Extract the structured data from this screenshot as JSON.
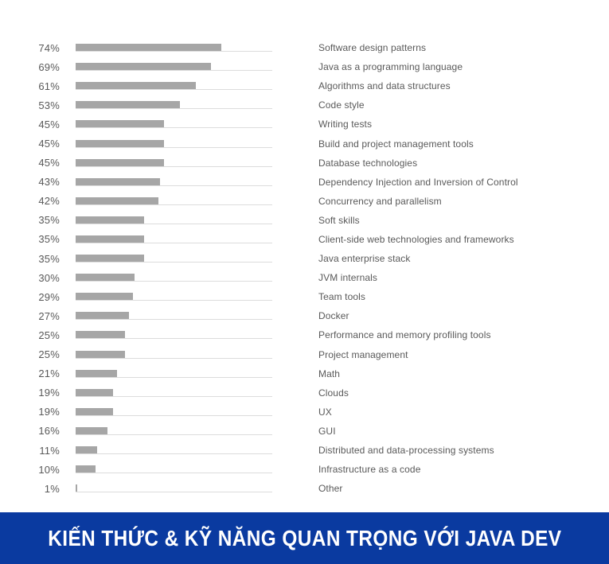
{
  "banner": {
    "title": "KIẾN THỨC & KỸ NĂNG QUAN TRỌNG VỚI JAVA DEV",
    "background": "#0a3aa0",
    "text_color": "#ffffff"
  },
  "chart_data": {
    "type": "bar",
    "orientation": "horizontal",
    "title": "KIẾN THỨC & KỸ NĂNG QUAN TRỌNG VỚI JAVA DEV",
    "xlabel": "",
    "ylabel": "",
    "xlim": [
      0,
      100
    ],
    "grid": false,
    "legend": false,
    "bar_color": "#a6a6a6",
    "track_color": "#dcdcdc",
    "categories": [
      "Software design patterns",
      "Java as a programming language",
      "Algorithms and data structures",
      "Code style",
      "Writing tests",
      "Build and project management tools",
      "Database technologies",
      "Dependency Injection and Inversion of Control",
      "Concurrency and parallelism",
      "Soft skills",
      "Client-side web technologies and frameworks",
      "Java enterprise stack",
      "JVM internals",
      "Team tools",
      "Docker",
      "Performance and memory profiling tools",
      "Project management",
      "Math",
      "Clouds",
      "UX",
      "GUI",
      "Distributed and data-processing systems",
      "Infrastructure as a code",
      "Other"
    ],
    "values": [
      74,
      69,
      61,
      53,
      45,
      45,
      45,
      43,
      42,
      35,
      35,
      35,
      30,
      29,
      27,
      25,
      25,
      21,
      19,
      19,
      16,
      11,
      10,
      1
    ],
    "value_labels": [
      "74%",
      "69%",
      "61%",
      "53%",
      "45%",
      "45%",
      "45%",
      "43%",
      "42%",
      "35%",
      "35%",
      "35%",
      "30%",
      "29%",
      "27%",
      "25%",
      "25%",
      "21%",
      "19%",
      "19%",
      "16%",
      "11%",
      "10%",
      "1%"
    ]
  }
}
